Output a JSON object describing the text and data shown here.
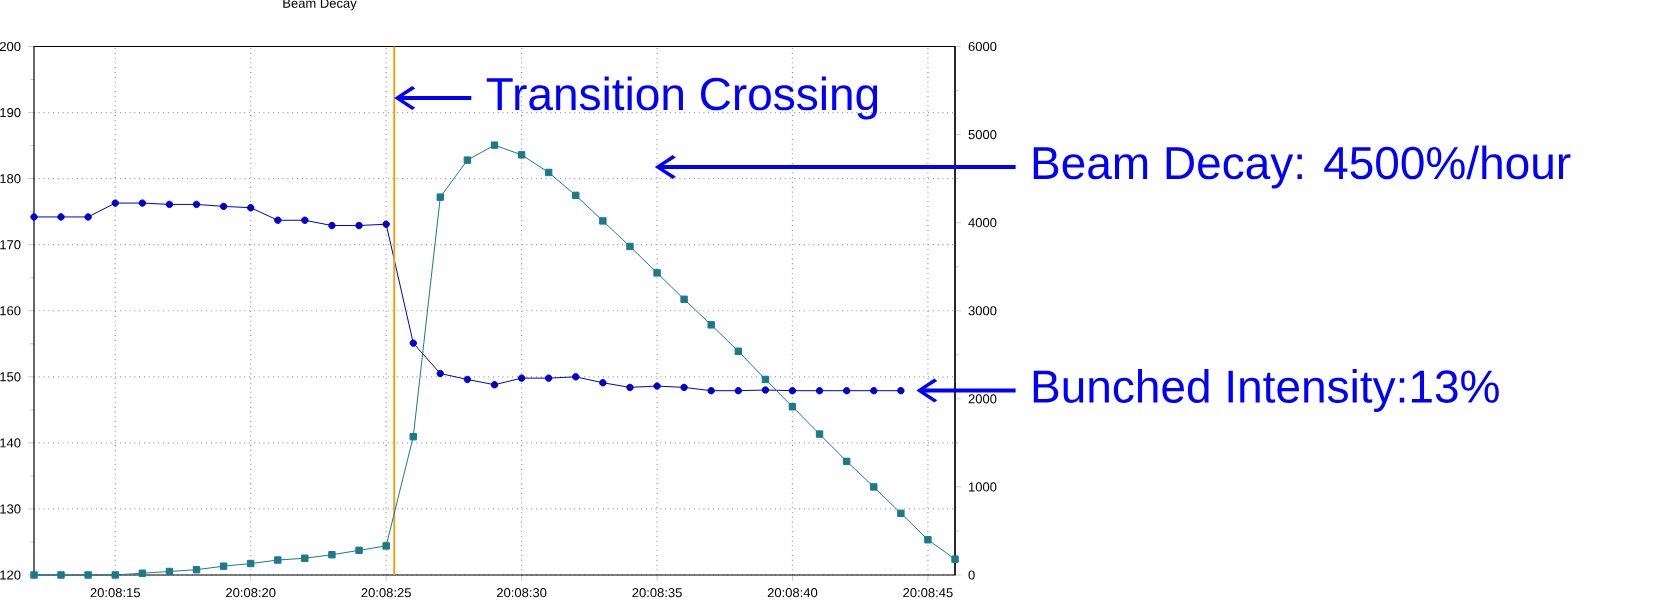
{
  "chart_data": {
    "type": "line",
    "title": "Beam Decay",
    "x": [
      20.136667,
      20.136944,
      20.137222,
      20.1375,
      20.137778,
      20.138056,
      20.138333,
      20.138611,
      20.138889,
      20.139167,
      20.139444,
      20.139722,
      20.14,
      20.140278,
      20.140556,
      20.140833,
      20.141111,
      20.141389,
      20.141667,
      20.141944,
      20.142222,
      20.1425,
      20.142778,
      20.143056,
      20.143333,
      20.143611,
      20.143889,
      20.144167,
      20.144444,
      20.144722,
      20.145,
      20.145278,
      20.145556,
      20.145833,
      20.146111
    ],
    "series": [
      {
        "color": "#0000cc",
        "marker": "circle",
        "values": [
          174.2,
          174.2,
          174.2,
          176.3,
          176.3,
          176.1,
          176.1,
          175.8,
          175.6,
          173.7,
          173.7,
          172.9,
          172.9,
          173.1,
          155.1,
          150.5,
          149.6,
          148.8,
          149.8,
          149.8,
          150.0,
          149.1,
          148.4,
          148.6,
          148.4,
          147.9,
          147.9,
          148.0,
          147.9,
          147.9,
          147.9,
          147.9,
          147.9,
          null,
          null
        ]
      },
      {
        "color": "#1a7a8a",
        "marker": "square",
        "axis": "y2",
        "values": [
          0,
          0,
          0,
          0,
          20,
          40,
          60,
          100,
          130,
          170,
          190,
          230,
          280,
          330,
          1570,
          4290,
          4710,
          4880,
          4770,
          4570,
          4310,
          4020,
          3730,
          3430,
          3130,
          2840,
          2540,
          2220,
          1910,
          1600,
          1290,
          1000,
          700,
          400,
          180
        ]
      }
    ],
    "xlim": [
      20.136667,
      20.146111
    ],
    "xticks": [
      {
        "value": 20.1375,
        "label": "20:08:15"
      },
      {
        "value": 20.138889,
        "label": "20:08:20"
      },
      {
        "value": 20.140278,
        "label": "20:08:25"
      },
      {
        "value": 20.141667,
        "label": "20:08:30"
      },
      {
        "value": 20.143056,
        "label": "20:08:35"
      },
      {
        "value": 20.144444,
        "label": "20:08:40"
      },
      {
        "value": 20.145833,
        "label": "20:08:45"
      }
    ],
    "ylim": [
      120,
      200
    ],
    "yticks": [
      120,
      {
        "value": 125,
        "label": null
      },
      130,
      {
        "value": 135,
        "label": null
      },
      140,
      {
        "value": 145,
        "label": null
      },
      150,
      {
        "value": 155,
        "label": null
      },
      160,
      {
        "value": 165,
        "label": null
      },
      170,
      {
        "value": 175,
        "label": null
      },
      180,
      {
        "value": 185,
        "label": null
      },
      190,
      {
        "value": 195,
        "label": null
      },
      200
    ],
    "y2lim": [
      0,
      6000
    ],
    "y2ticks": [
      0,
      {
        "value": 500,
        "label": null
      },
      1000,
      {
        "value": 1500,
        "label": null
      },
      2000,
      {
        "value": 2500,
        "label": null
      },
      3000,
      {
        "value": 3500,
        "label": null
      },
      4000,
      {
        "value": 4500,
        "label": null
      },
      5000,
      {
        "value": 5500,
        "label": null
      },
      6000
    ],
    "grid": true,
    "ref_lines": [
      {
        "axis": "x",
        "value": 20.140361,
        "color": "#e8a317"
      }
    ],
    "annotations": [
      {
        "text": "Transition Crossing",
        "x": 20.140361,
        "y": 192.2
      },
      "Beam Decay: 4500%/hour",
      "Bunched Intensity:13%"
    ]
  }
}
